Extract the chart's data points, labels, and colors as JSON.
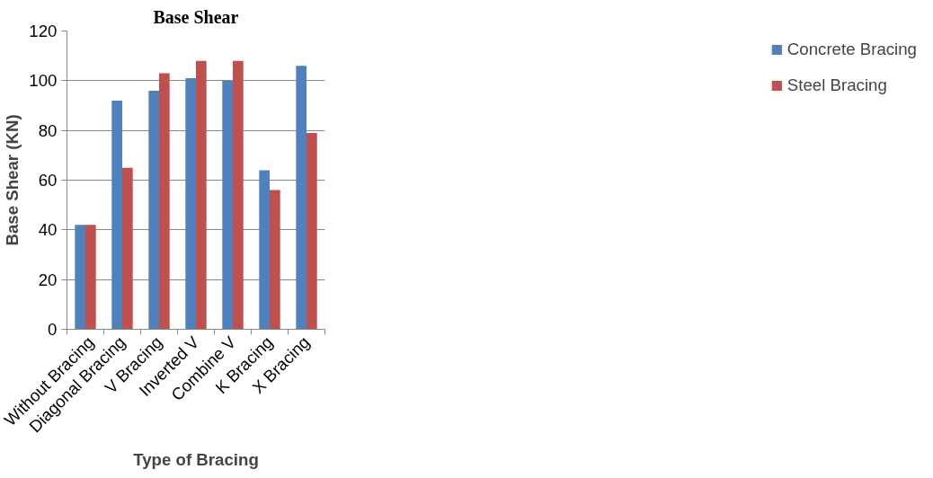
{
  "chart_data": {
    "type": "bar",
    "title": "Base Shear",
    "xlabel": "Type of Bracing",
    "ylabel": "Base Shear (KN)",
    "categories": [
      "Without Bracing",
      "Diagonal Bracing",
      "V Bracing",
      "Inverted V",
      "Combine V",
      "K Bracing",
      "X Bracing"
    ],
    "series": [
      {
        "name": "Concrete Bracing",
        "color": "#4f81bd",
        "values": [
          42,
          92,
          96,
          101,
          100,
          64,
          106
        ]
      },
      {
        "name": "Steel Bracing",
        "color": "#c0504d",
        "values": [
          42,
          65,
          103,
          108,
          108,
          56,
          79
        ]
      }
    ],
    "ylim": [
      0,
      120
    ],
    "yticks": [
      0,
      20,
      40,
      60,
      80,
      100,
      120
    ],
    "grid": "y",
    "legend": "right"
  }
}
